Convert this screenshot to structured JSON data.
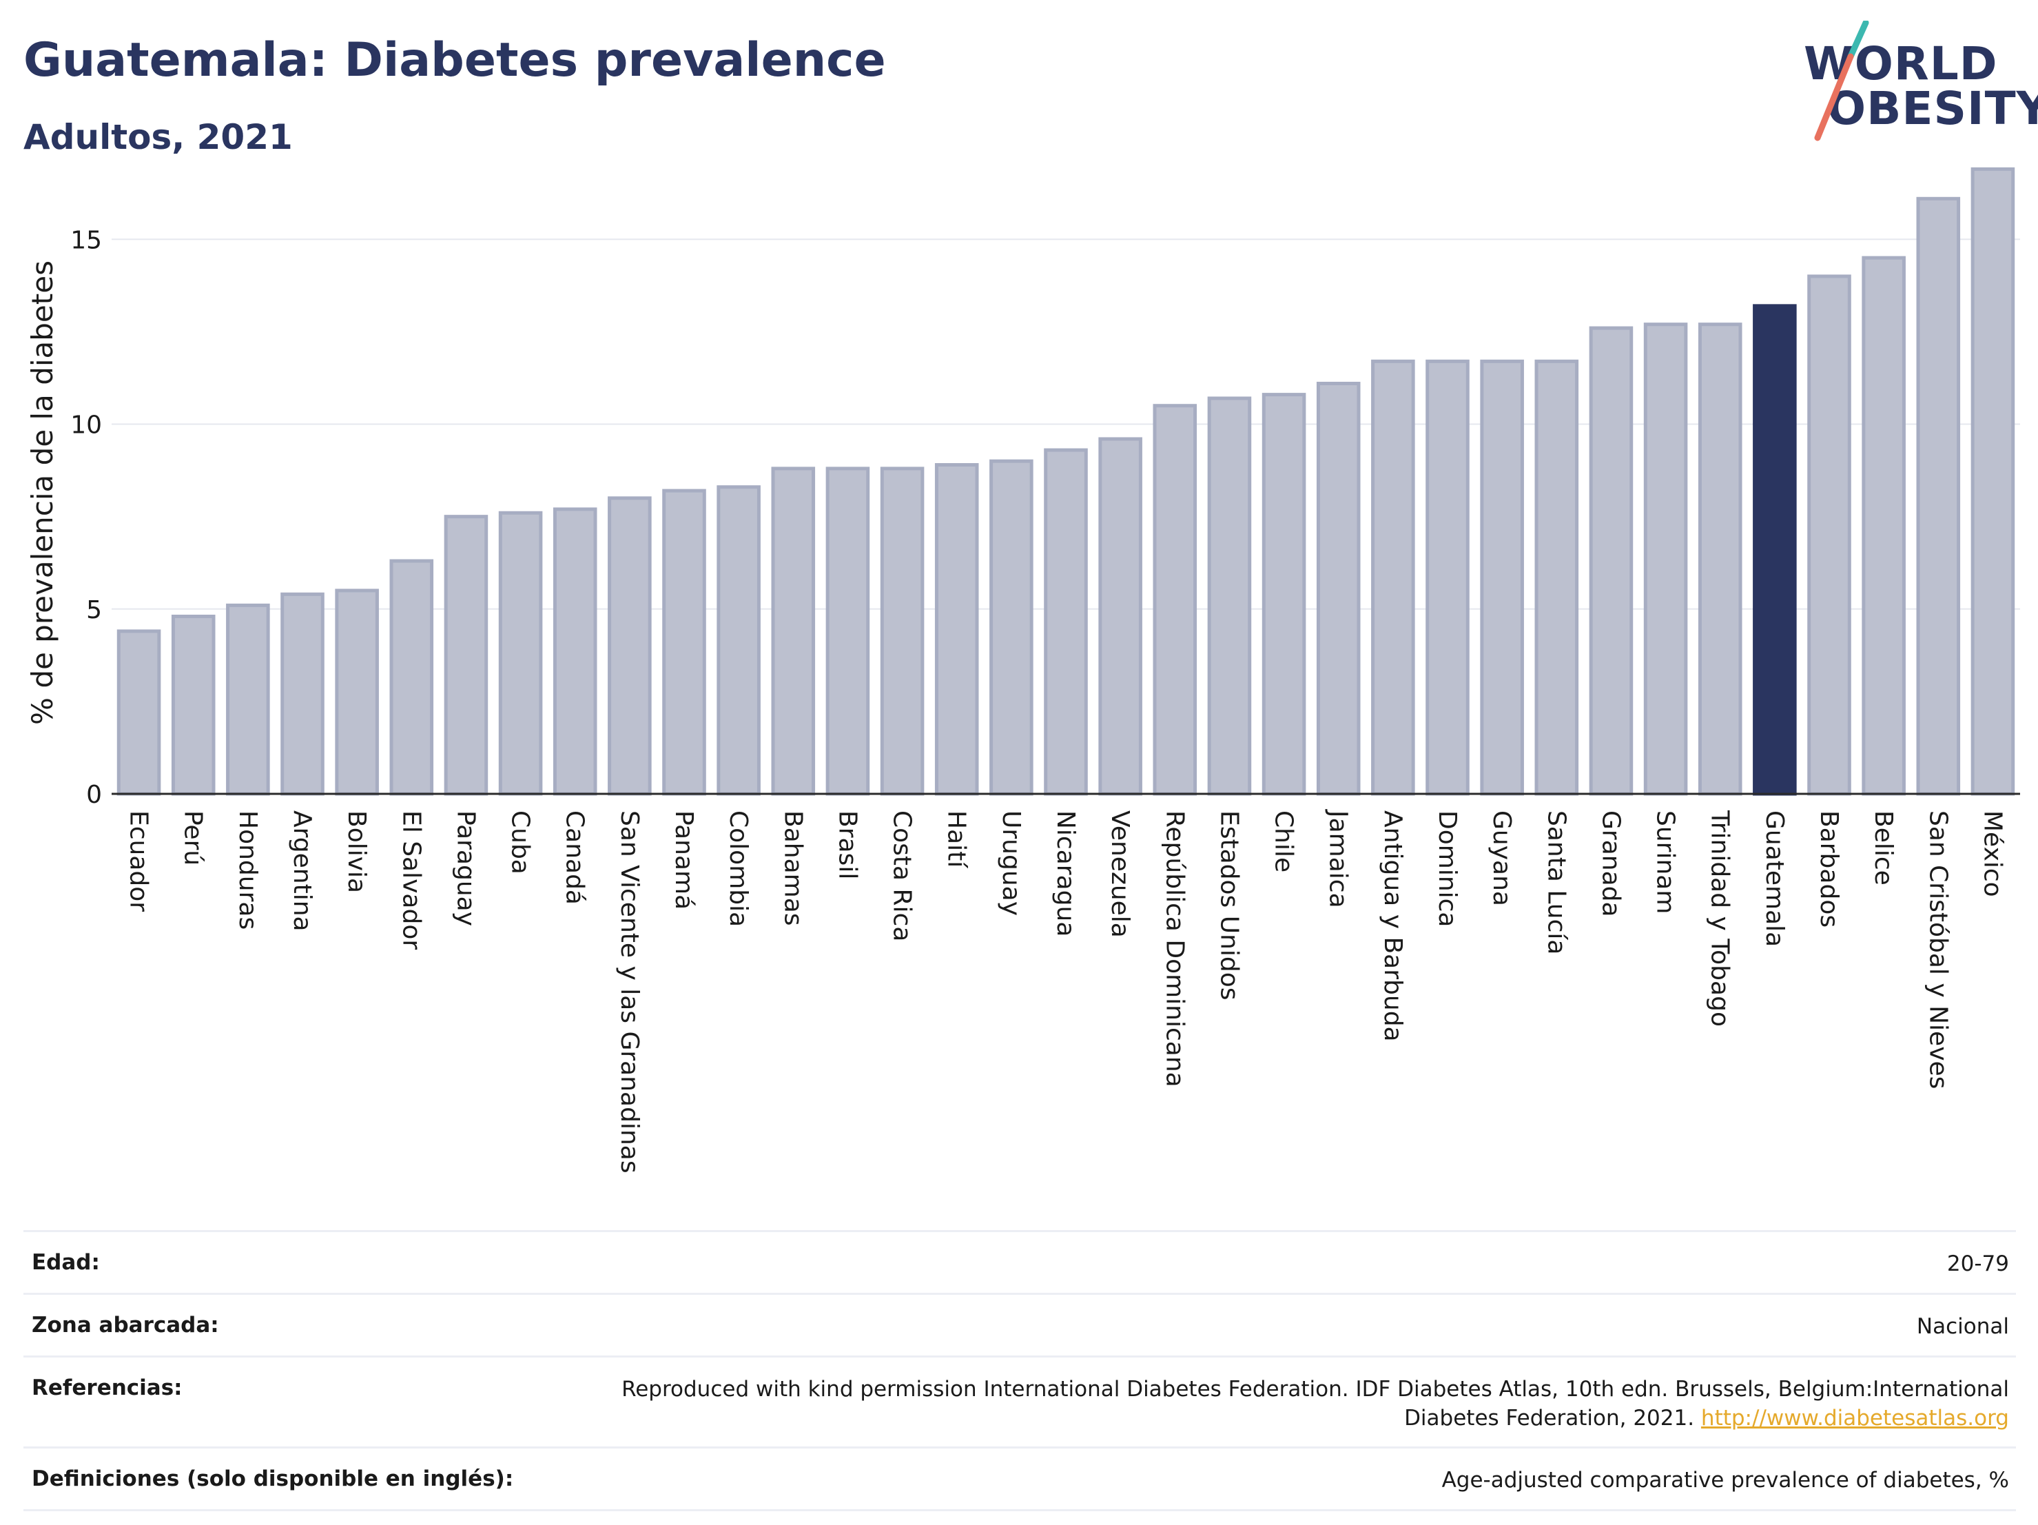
{
  "header": {
    "title": "Guatemala: Diabetes prevalence",
    "subtitle": "Adultos, 2021",
    "logo_line1": "WORLD",
    "logo_line2": "OBESITY"
  },
  "colors": {
    "title": "#2a3560",
    "bar_default": "#bcc0cf",
    "bar_default_border": "#a7adc2",
    "bar_highlight": "#2a3560",
    "link": "#e5a92b",
    "logo_slash_top": "#3cb8b0",
    "logo_slash_bottom": "#e8715e"
  },
  "chart_data": {
    "type": "bar",
    "ylabel": "% de prevalencia de la diabetes",
    "xlabel": "",
    "ylim": [
      0,
      17
    ],
    "yticks": [
      0,
      5,
      10,
      15
    ],
    "grid": true,
    "highlight": "Guatemala",
    "categories": [
      "Ecuador",
      "Perú",
      "Honduras",
      "Argentina",
      "Bolivia",
      "El Salvador",
      "Paraguay",
      "Cuba",
      "Canadá",
      "San Vicente y las Granadinas",
      "Panamá",
      "Colombia",
      "Bahamas",
      "Brasil",
      "Costa Rica",
      "Haití",
      "Uruguay",
      "Nicaragua",
      "Venezuela",
      "República Dominicana",
      "Estados Unidos",
      "Chile",
      "Jamaica",
      "Antigua y Barbuda",
      "Dominica",
      "Guyana",
      "Santa Lucía",
      "Granada",
      "Surinam",
      "Trinidad y Tobago",
      "Guatemala",
      "Barbados",
      "Belice",
      "San Cristóbal y Nieves",
      "México"
    ],
    "values": [
      4.4,
      4.8,
      5.1,
      5.4,
      5.5,
      6.3,
      7.5,
      7.6,
      7.7,
      8.0,
      8.2,
      8.3,
      8.8,
      8.8,
      8.8,
      8.9,
      9.0,
      9.3,
      9.6,
      10.5,
      10.7,
      10.8,
      11.1,
      11.7,
      11.7,
      11.7,
      11.7,
      12.6,
      12.7,
      12.7,
      13.2,
      14.0,
      14.5,
      16.1,
      16.9
    ]
  },
  "meta": {
    "rows": [
      {
        "label": "Edad:",
        "value": "20-79"
      },
      {
        "label": "Zona abarcada:",
        "value": "Nacional"
      },
      {
        "label": "Referencias:",
        "value": "Reproduced with kind permission International Diabetes Federation.  IDF Diabetes Atlas, 10th edn. Brussels, Belgium:International Diabetes Federation, 2021. ",
        "link": "http://www.diabetesatlas.org"
      },
      {
        "label": "Definiciones (solo disponible en inglés):",
        "value": "Age-adjusted comparative prevalence of diabetes, %"
      }
    ]
  }
}
